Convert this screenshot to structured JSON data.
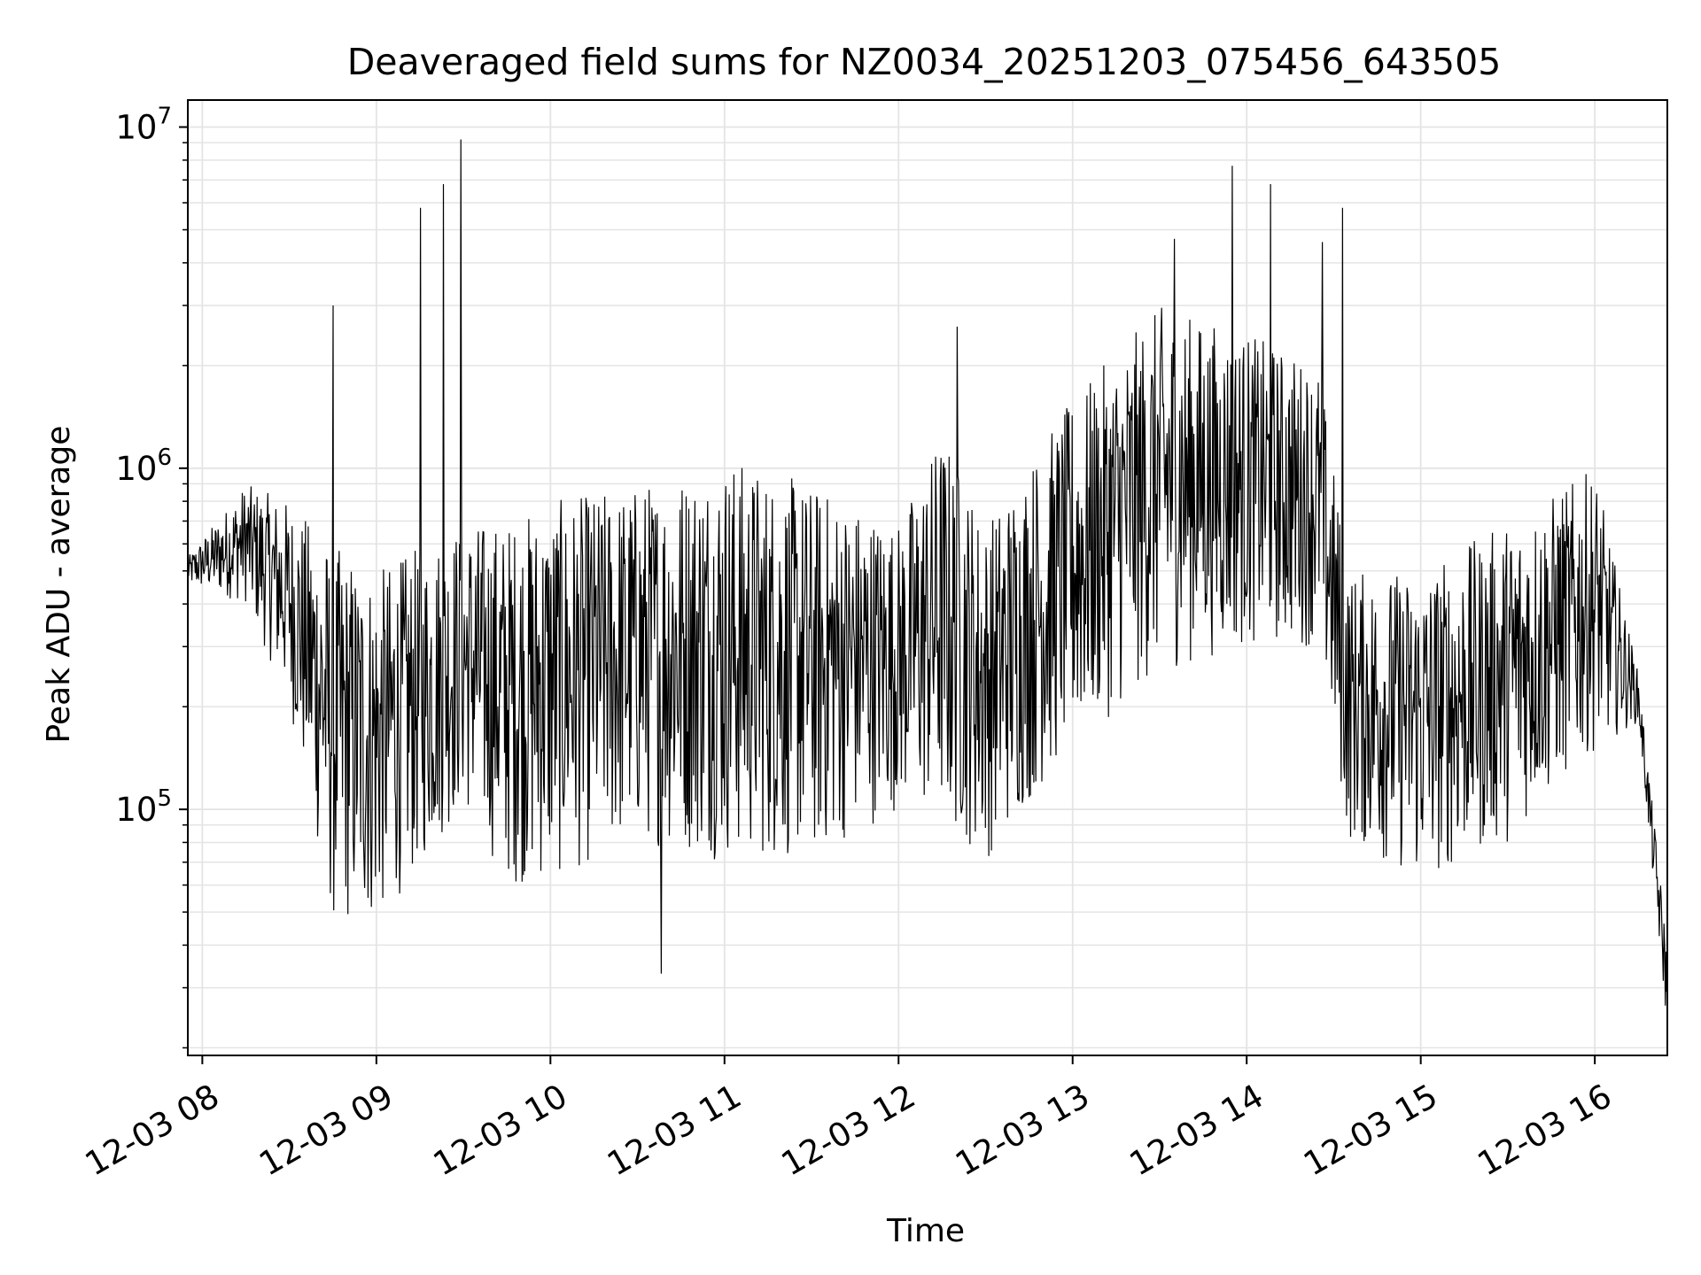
{
  "chart_data": {
    "type": "line",
    "title": "Deaveraged field sums for NZ0034_20251203_075456_643505",
    "xlabel": "Time",
    "ylabel": "Peak ADU - average",
    "yscale": "log",
    "ylim": [
      19000,
      12000000
    ],
    "xlim": [
      "2025-12-03 07:55",
      "2025-12-03 16:25"
    ],
    "grid": true,
    "series_color": "#000000",
    "x_ticks": [
      "12-03 08",
      "12-03 09",
      "12-03 10",
      "12-03 11",
      "12-03 12",
      "12-03 13",
      "12-03 14",
      "12-03 15",
      "12-03 16"
    ],
    "y_ticks": [
      {
        "base": "10",
        "exp": "5",
        "value": 100000
      },
      {
        "base": "10",
        "exp": "6",
        "value": 1000000
      },
      {
        "base": "10",
        "exp": "7",
        "value": 10000000
      }
    ],
    "series": [
      {
        "x_start": "2025-12-03 07:55",
        "x_end": "2025-12-03 16:25",
        "envelope": [
          {
            "t": "2025-12-03 07:55",
            "lo": 450000,
            "hi": 550000
          },
          {
            "t": "2025-12-03 08:15",
            "lo": 400000,
            "hi": 900000
          },
          {
            "t": "2025-12-03 08:30",
            "lo": 200000,
            "hi": 800000
          },
          {
            "t": "2025-12-03 08:45",
            "lo": 45000,
            "hi": 600000
          },
          {
            "t": "2025-12-03 09:00",
            "lo": 45000,
            "hi": 500000
          },
          {
            "t": "2025-12-03 09:30",
            "lo": 100000,
            "hi": 700000
          },
          {
            "t": "2025-12-03 09:45",
            "lo": 60000,
            "hi": 700000
          },
          {
            "t": "2025-12-03 10:00",
            "lo": 60000,
            "hi": 800000
          },
          {
            "t": "2025-12-03 10:30",
            "lo": 80000,
            "hi": 900000
          },
          {
            "t": "2025-12-03 11:00",
            "lo": 70000,
            "hi": 1100000
          },
          {
            "t": "2025-12-03 11:30",
            "lo": 70000,
            "hi": 900000
          },
          {
            "t": "2025-12-03 12:00",
            "lo": 100000,
            "hi": 700000
          },
          {
            "t": "2025-12-03 12:15",
            "lo": 90000,
            "hi": 1300000
          },
          {
            "t": "2025-12-03 12:30",
            "lo": 70000,
            "hi": 700000
          },
          {
            "t": "2025-12-03 13:00",
            "lo": 150000,
            "hi": 1600000
          },
          {
            "t": "2025-12-03 13:30",
            "lo": 250000,
            "hi": 3000000
          },
          {
            "t": "2025-12-03 14:00",
            "lo": 300000,
            "hi": 2500000
          },
          {
            "t": "2025-12-03 14:25",
            "lo": 300000,
            "hi": 2000000
          },
          {
            "t": "2025-12-03 14:35",
            "lo": 80000,
            "hi": 500000
          },
          {
            "t": "2025-12-03 15:00",
            "lo": 60000,
            "hi": 500000
          },
          {
            "t": "2025-12-03 15:30",
            "lo": 80000,
            "hi": 700000
          },
          {
            "t": "2025-12-03 16:00",
            "lo": 150000,
            "hi": 1000000
          },
          {
            "t": "2025-12-03 16:15",
            "lo": 180000,
            "hi": 250000
          },
          {
            "t": "2025-12-03 16:25",
            "lo": 22000,
            "hi": 40000
          }
        ],
        "spikes": [
          {
            "t": "2025-12-03 08:45",
            "y": 3000000
          },
          {
            "t": "2025-12-03 09:15",
            "y": 5800000
          },
          {
            "t": "2025-12-03 09:23",
            "y": 6800000
          },
          {
            "t": "2025-12-03 09:29",
            "y": 9200000
          },
          {
            "t": "2025-12-03 10:38",
            "y": 33000
          },
          {
            "t": "2025-12-03 12:20",
            "y": 2600000
          },
          {
            "t": "2025-12-03 13:35",
            "y": 4700000
          },
          {
            "t": "2025-12-03 13:55",
            "y": 7700000
          },
          {
            "t": "2025-12-03 14:08",
            "y": 6800000
          },
          {
            "t": "2025-12-03 14:26",
            "y": 4600000
          },
          {
            "t": "2025-12-03 14:33",
            "y": 5800000
          }
        ]
      }
    ]
  }
}
